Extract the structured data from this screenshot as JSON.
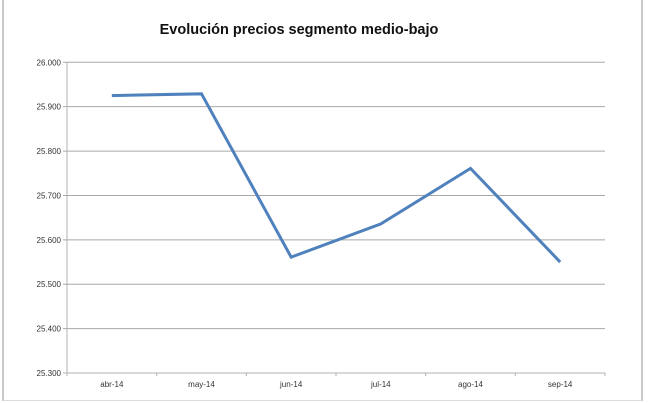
{
  "chart_data": {
    "type": "line",
    "title": "Evolución precios segmento medio-bajo",
    "xlabel": "",
    "ylabel": "",
    "categories": [
      "abr-14",
      "may-14",
      "jun-14",
      "jul-14",
      "ago-14",
      "sep-14"
    ],
    "series": [
      {
        "values": [
          25925,
          25929,
          25561,
          25636,
          25761,
          25550
        ],
        "color": "#4f81bd"
      }
    ],
    "ylim": [
      25300,
      26000
    ],
    "yticks": [
      25300,
      25400,
      25500,
      25600,
      25700,
      25800,
      25900,
      26000
    ],
    "ytick_labels": [
      "25.300",
      "25.400",
      "25.500",
      "25.600",
      "25.700",
      "25.800",
      "25.900",
      "26.000"
    ],
    "grid": true,
    "legend": "none"
  }
}
